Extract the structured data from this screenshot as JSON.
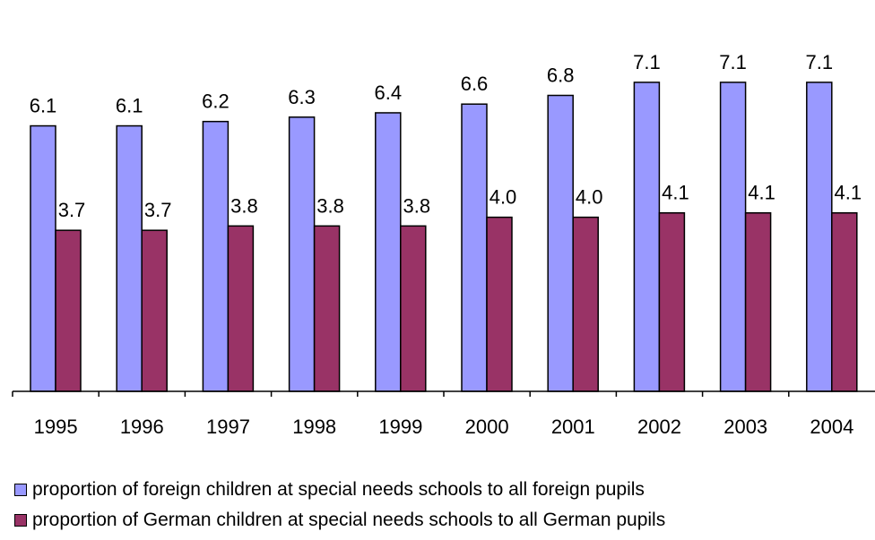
{
  "chart_data": {
    "type": "bar",
    "categories": [
      "1995",
      "1996",
      "1997",
      "1998",
      "1999",
      "2000",
      "2001",
      "2002",
      "2003",
      "2004"
    ],
    "series": [
      {
        "name": "proportion of foreign children at special needs schools to all foreign pupils",
        "values": [
          6.1,
          6.1,
          6.2,
          6.3,
          6.4,
          6.6,
          6.8,
          7.1,
          7.1,
          7.1
        ],
        "labels": [
          "6.1",
          "6.1",
          "6.2",
          "6.3",
          "6.4",
          "6.6",
          "6.8",
          "7.1",
          "7.1",
          "7.1"
        ],
        "color": "#9999ff"
      },
      {
        "name": "proportion of German children at special needs schools to all German pupils",
        "values": [
          3.7,
          3.7,
          3.8,
          3.8,
          3.8,
          4.0,
          4.0,
          4.1,
          4.1,
          4.1
        ],
        "labels": [
          "3.7",
          "3.7",
          "3.8",
          "3.8",
          "3.8",
          "4.0",
          "4.0",
          "4.1",
          "4.1",
          "4.1"
        ],
        "color": "#993366"
      }
    ],
    "ylim": [
      0,
      8
    ],
    "grid": false,
    "legend": "bottom-left"
  }
}
